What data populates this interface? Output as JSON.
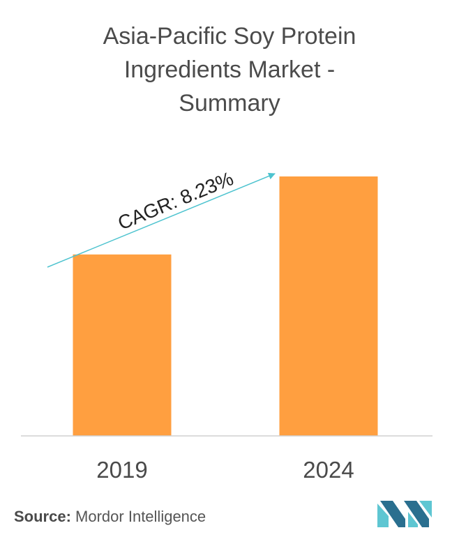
{
  "chart_data": {
    "type": "bar",
    "title_lines": [
      "Asia-Pacific Soy Protein",
      "Ingredients Market -",
      "Summary"
    ],
    "categories": [
      "2019",
      "2024"
    ],
    "values": [
      100,
      143
    ],
    "annotation": "CAGR: 8.23%",
    "bar_color": "#ff9f40",
    "arrow_color": "#4dc3cf",
    "grid": false,
    "legend": "none"
  },
  "source": {
    "label": "Source:",
    "text": "Mordor Intelligence"
  },
  "colors": {
    "logo_dark": "#2a6f8f",
    "logo_light": "#5ec6d2"
  }
}
